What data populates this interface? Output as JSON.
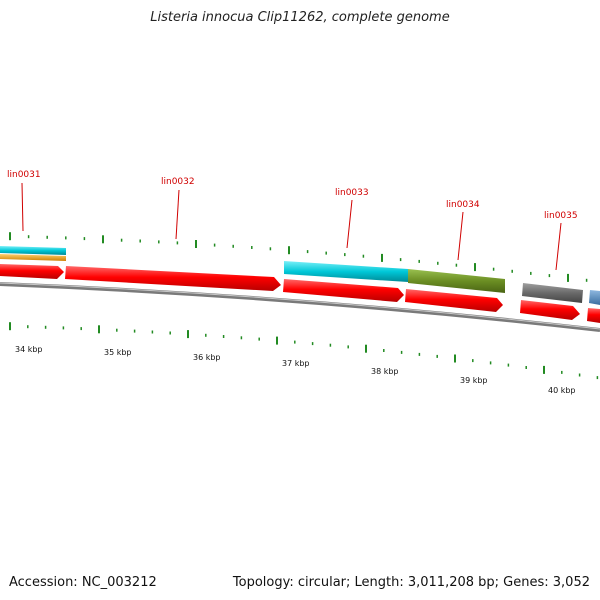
{
  "title": "Listeria innocua Clip11262, complete genome",
  "footer": {
    "accession": "Accession: NC_003212",
    "summary": "Topology: circular; Length: 3,011,208 bp; Genes: 3,052"
  },
  "gene_labels": [
    "lin0031",
    "lin0032",
    "lin0033",
    "lin0034",
    "lin0035"
  ],
  "scale_labels": [
    "34 kbp",
    "35 kbp",
    "36 kbp",
    "37 kbp",
    "38 kbp",
    "39 kbp",
    "40 kbp"
  ],
  "colors": {
    "gene": "#ff0000",
    "cyan": "#00c8d8",
    "orange": "#f0a000",
    "olive": "#6b8e23",
    "gray": "#666666",
    "blue": "#4682b4",
    "backbone": "#8c8c8c",
    "tick": "#228b22",
    "label": "#d00000"
  }
}
